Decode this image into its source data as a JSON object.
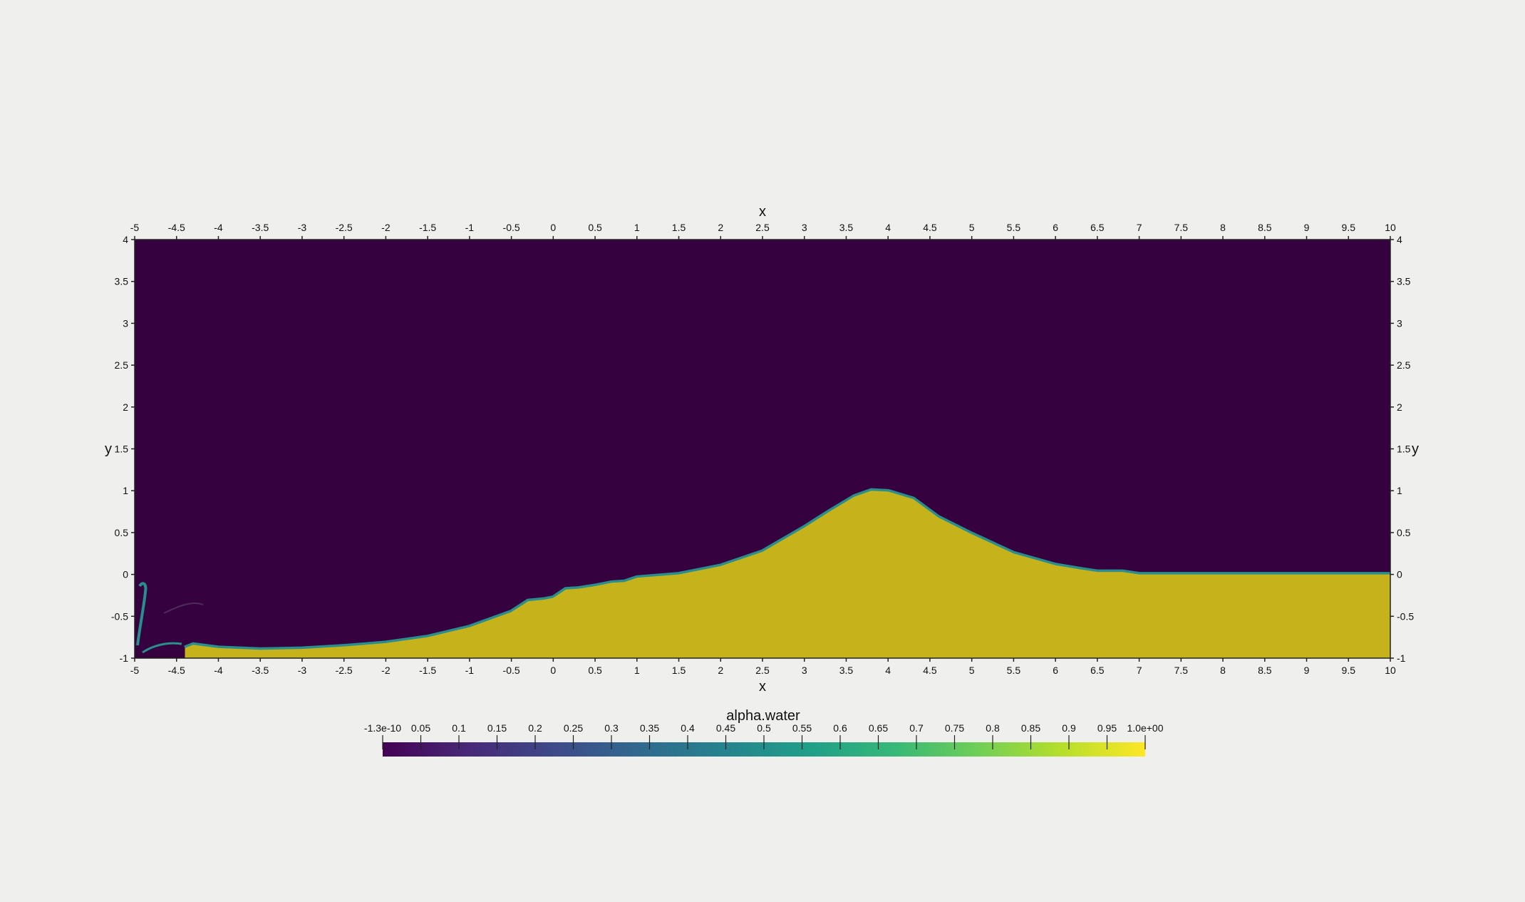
{
  "chart_data": {
    "type": "heatmap",
    "description_field": "alpha.water",
    "xlabel": "x",
    "ylabel": "y",
    "xlim": [
      -5,
      10
    ],
    "ylim": [
      -1,
      4
    ],
    "x_ticks": [
      "-5",
      "-4.5",
      "-4",
      "-3.5",
      "-3",
      "-2.5",
      "-2",
      "-1.5",
      "-1",
      "-0.5",
      "0",
      "0.5",
      "1",
      "1.5",
      "2",
      "2.5",
      "3",
      "3.5",
      "4",
      "4.5",
      "5",
      "5.5",
      "6",
      "6.5",
      "7",
      "7.5",
      "8",
      "8.5",
      "9",
      "9.5",
      "10"
    ],
    "y_ticks": [
      "-1",
      "-0.5",
      "0",
      "0.5",
      "1",
      "1.5",
      "2",
      "2.5",
      "3",
      "3.5",
      "4"
    ],
    "colors": {
      "air": "#35023f",
      "water": "#c6b31c",
      "interface": "#2a8f8c"
    },
    "free_surface": {
      "x": [
        -4.4,
        -4.3,
        -4.0,
        -3.5,
        -3.0,
        -2.5,
        -2.0,
        -1.5,
        -1.0,
        -0.5,
        -0.3,
        -0.1,
        0.0,
        0.15,
        0.3,
        0.5,
        0.7,
        0.85,
        1.0,
        1.5,
        2.0,
        2.5,
        3.0,
        3.3,
        3.6,
        3.8,
        4.0,
        4.3,
        4.6,
        5.0,
        5.5,
        6.0,
        6.3,
        6.5,
        6.8,
        7.0,
        8.0,
        9.0,
        10.0
      ],
      "y": [
        -0.88,
        -0.84,
        -0.88,
        -0.9,
        -0.89,
        -0.86,
        -0.82,
        -0.75,
        -0.63,
        -0.45,
        -0.32,
        -0.3,
        -0.28,
        -0.18,
        -0.17,
        -0.14,
        -0.1,
        -0.09,
        -0.04,
        0.0,
        0.1,
        0.27,
        0.56,
        0.75,
        0.93,
        1.0,
        0.99,
        0.9,
        0.68,
        0.48,
        0.25,
        0.11,
        0.06,
        0.03,
        0.03,
        0.0,
        0.0,
        0.0,
        0.0
      ]
    },
    "colorbar": {
      "title": "alpha.water",
      "min": -1.3e-10,
      "max": 1.0,
      "tick_labels": [
        "-1.3e-10",
        "0.05",
        "0.1",
        "0.15",
        "0.2",
        "0.25",
        "0.3",
        "0.35",
        "0.4",
        "0.45",
        "0.5",
        "0.55",
        "0.6",
        "0.65",
        "0.7",
        "0.75",
        "0.8",
        "0.85",
        "0.9",
        "0.95",
        "1.0e+00"
      ],
      "colormap": "viridis",
      "stops": [
        "#440154",
        "#482878",
        "#3e4989",
        "#31688e",
        "#26828e",
        "#1f9e89",
        "#35b779",
        "#6ece58",
        "#b5de2b",
        "#fde725"
      ]
    }
  }
}
